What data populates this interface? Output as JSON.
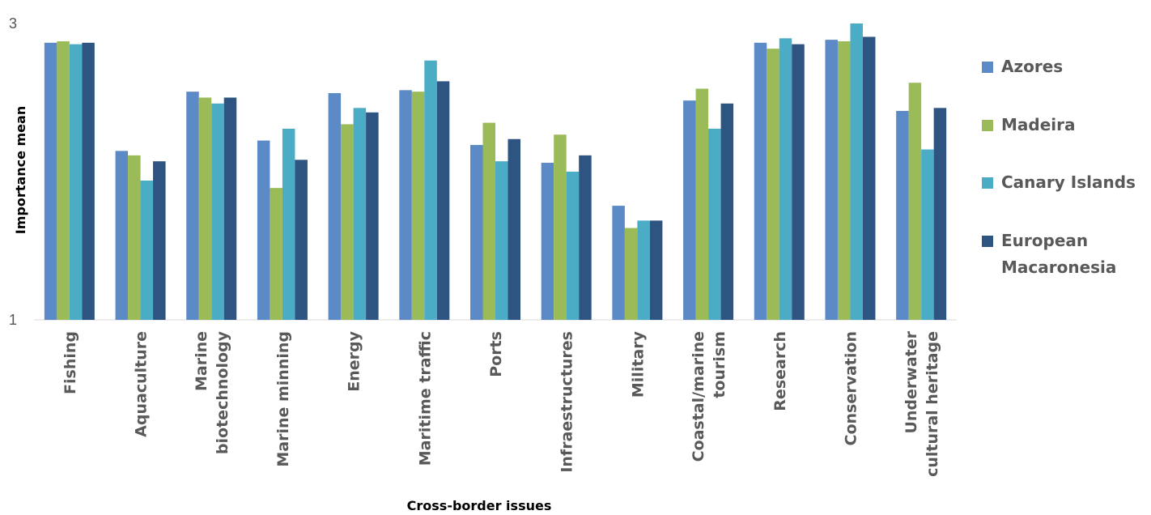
{
  "chart_data": {
    "type": "bar",
    "xlabel": "Cross-border issues",
    "ylabel": "Importance mean",
    "ylim": [
      1,
      3
    ],
    "yticks": [
      "1",
      "3"
    ],
    "grid": false,
    "legend_position": "right",
    "categories": [
      [
        "Fishing"
      ],
      [
        "Aquaculture"
      ],
      [
        "Marine",
        "biotechnology"
      ],
      [
        "Marine minning"
      ],
      [
        "Energy"
      ],
      [
        "Maritime traffic"
      ],
      [
        "Ports"
      ],
      [
        "Infraestructures"
      ],
      [
        "Military"
      ],
      [
        "Coastal/marine",
        "tourism"
      ],
      [
        "Research"
      ],
      [
        "Conservation"
      ],
      [
        "Underwater",
        "cultural heritage"
      ]
    ],
    "series": [
      {
        "name": "Azores",
        "legend_lines": [
          "Azores"
        ],
        "color": "#5B8AC6",
        "values": [
          2.87,
          2.14,
          2.54,
          2.21,
          2.53,
          2.55,
          2.18,
          2.06,
          1.77,
          2.48,
          2.87,
          2.89,
          2.41
        ]
      },
      {
        "name": "Madeira",
        "legend_lines": [
          "Madeira"
        ],
        "color": "#9BBB59",
        "values": [
          2.88,
          2.11,
          2.5,
          1.89,
          2.32,
          2.54,
          2.33,
          2.25,
          1.62,
          2.56,
          2.83,
          2.88,
          2.6
        ]
      },
      {
        "name": "Canary Islands",
        "legend_lines": [
          "Canary Islands"
        ],
        "color": "#4BACC6",
        "values": [
          2.86,
          1.94,
          2.46,
          2.29,
          2.43,
          2.75,
          2.07,
          2.0,
          1.67,
          2.29,
          2.9,
          3.0,
          2.15
        ]
      },
      {
        "name": "European Macaronesia",
        "legend_lines": [
          "European",
          "Macaronesia"
        ],
        "color": "#2E5581",
        "values": [
          2.87,
          2.07,
          2.5,
          2.08,
          2.4,
          2.61,
          2.22,
          2.11,
          1.67,
          2.46,
          2.86,
          2.91,
          2.43
        ]
      }
    ]
  }
}
